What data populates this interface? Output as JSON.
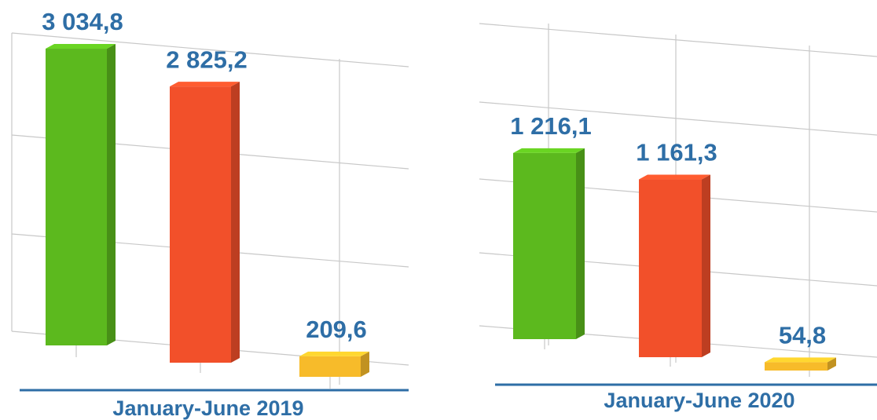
{
  "chart_data": [
    {
      "type": "bar",
      "title": "January-June 2019",
      "values": [
        3034.8,
        2825.2,
        209.6
      ],
      "value_labels": [
        "3 034,8",
        "2 825,2",
        "209,6"
      ],
      "colors": [
        "#5cb91e",
        "#f2502a",
        "#f7bb2a"
      ],
      "ylim": [
        0,
        3300
      ]
    },
    {
      "type": "bar",
      "title": "January-June 2020",
      "values": [
        1216.1,
        1161.3,
        54.8
      ],
      "value_labels": [
        "1 216,1",
        "1 161,3",
        "54,8"
      ],
      "colors": [
        "#5cb91e",
        "#f2502a",
        "#f7bb2a"
      ],
      "ylim": [
        0,
        2000
      ]
    }
  ]
}
